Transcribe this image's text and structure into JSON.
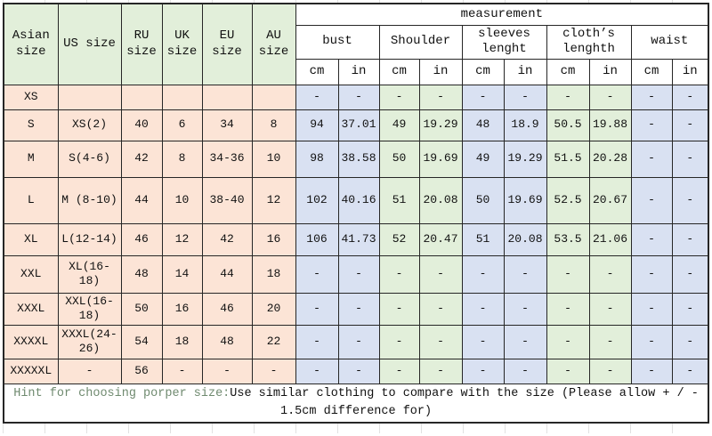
{
  "chart_data": {
    "type": "table",
    "title": "measurement",
    "size_columns": [
      "Asian size",
      "US size",
      "RU size",
      "UK size",
      "EU size",
      "AU size"
    ],
    "measurement_groups": [
      "bust",
      "Shoulder",
      "sleeves lenght",
      "cloth’s lenghth",
      "waist"
    ],
    "unit_labels": [
      "cm",
      "in"
    ],
    "rows": [
      [
        "XS",
        "",
        "",
        "",
        "",
        "",
        "-",
        "-",
        "-",
        "-",
        "-",
        "-",
        "-",
        "-",
        "-",
        "-"
      ],
      [
        "S",
        "XS(2)",
        "40",
        "6",
        "34",
        "8",
        "94",
        "37.01",
        "49",
        "19.29",
        "48",
        "18.9",
        "50.5",
        "19.88",
        "-",
        "-"
      ],
      [
        "M",
        "S(4-6)",
        "42",
        "8",
        "34-36",
        "10",
        "98",
        "38.58",
        "50",
        "19.69",
        "49",
        "19.29",
        "51.5",
        "20.28",
        "-",
        "-"
      ],
      [
        "L",
        "M (8-10)",
        "44",
        "10",
        "38-40",
        "12",
        "102",
        "40.16",
        "51",
        "20.08",
        "50",
        "19.69",
        "52.5",
        "20.67",
        "-",
        "-"
      ],
      [
        "XL",
        "L(12-14)",
        "46",
        "12",
        "42",
        "16",
        "106",
        "41.73",
        "52",
        "20.47",
        "51",
        "20.08",
        "53.5",
        "21.06",
        "-",
        "-"
      ],
      [
        "XXL",
        "XL(16-18)",
        "48",
        "14",
        "44",
        "18",
        "-",
        "-",
        "-",
        "-",
        "-",
        "-",
        "-",
        "-",
        "-",
        "-"
      ],
      [
        "XXXL",
        "XXL(16-18)",
        "50",
        "16",
        "46",
        "20",
        "-",
        "-",
        "-",
        "-",
        "-",
        "-",
        "-",
        "-",
        "-",
        "-"
      ],
      [
        "XXXXL",
        "XXXL(24-26)",
        "54",
        "18",
        "48",
        "22",
        "-",
        "-",
        "-",
        "-",
        "-",
        "-",
        "-",
        "-",
        "-",
        "-"
      ],
      [
        "XXXXXL",
        "-",
        "56",
        "-",
        "-",
        "-",
        "-",
        "-",
        "-",
        "-",
        "-",
        "-",
        "-",
        "-",
        "-",
        "-"
      ]
    ],
    "footnote": {
      "prefix": "Hint for choosing porper size:",
      "line1": "Use similar clothing to compare with the size (Please allow + / -",
      "line2": "1.5cm difference for)"
    }
  },
  "colors": {
    "size_header_bg": "#e2efda",
    "size_cell_bg": "#fce4d6",
    "measure_blue_bg": "#d9e1f2",
    "measure_green_bg": "#e2efda",
    "hint_text": "#6f8a6f",
    "grid_border": "#262626"
  }
}
